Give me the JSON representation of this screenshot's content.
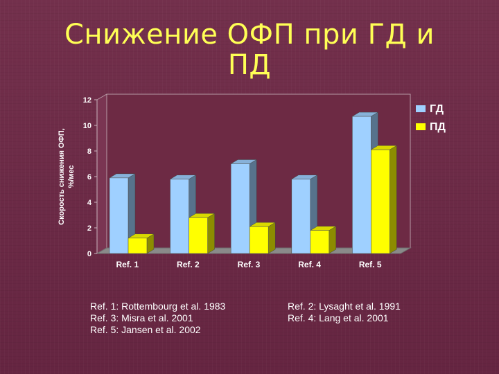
{
  "title_lines": [
    "Снижение ОФП при ГД и",
    "ПД"
  ],
  "chart_data": {
    "type": "bar",
    "categories": [
      "Ref. 1",
      "Ref. 2",
      "Ref. 3",
      "Ref. 4",
      "Ref. 5"
    ],
    "series": [
      {
        "name": "ГД",
        "values": [
          5.9,
          5.8,
          7.0,
          5.8,
          10.7
        ],
        "color": "#9fd0ff"
      },
      {
        "name": "ПД",
        "values": [
          1.2,
          2.8,
          2.1,
          1.8,
          8.1
        ],
        "color": "#ffff00"
      }
    ],
    "ylabel": "Скорость снижения ОФП, %/мес",
    "ylim": [
      0,
      12
    ],
    "yticks": [
      0,
      2,
      4,
      6,
      8,
      10,
      12
    ],
    "grid": false,
    "legend_position": "top-right",
    "style": "3d"
  },
  "references": {
    "left": [
      "Ref. 1: Rottembourg et al. 1983",
      "Ref. 3: Misra et al. 2001",
      "Ref. 5: Jansen et al. 2002"
    ],
    "right": [
      "Ref. 2: Lysaght et al. 1991",
      "Ref. 4: Lang et al. 2001"
    ]
  },
  "colors": {
    "background": "#6b2a44",
    "title": "#ffff55",
    "axis_text": "#ffffff",
    "wall": "#6d2a44"
  }
}
